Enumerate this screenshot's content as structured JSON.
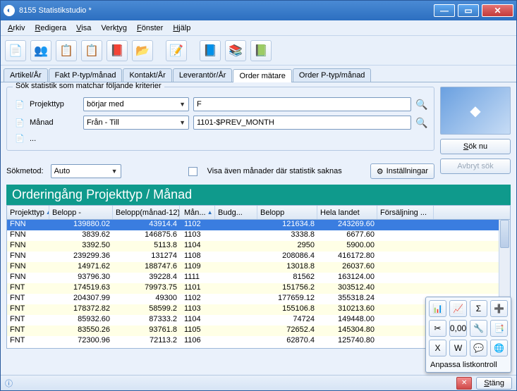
{
  "window": {
    "title": "8155 Statistikstudio *"
  },
  "menu": {
    "items": [
      "Arkiv",
      "Redigera",
      "Visa",
      "Verktyg",
      "Fönster",
      "Hjälp"
    ]
  },
  "toolbar": {
    "icons": [
      "📄",
      "👥",
      "📋",
      "📋",
      "📕",
      "📂",
      "",
      "📝",
      "",
      "📘",
      "📚",
      "📗"
    ]
  },
  "tabs": {
    "items": [
      "Artikel/År",
      "Fakt P-typ/månad",
      "Kontakt/År",
      "Leverantör/År",
      "Order mätare",
      "Order P-typ/månad"
    ],
    "active": 4
  },
  "search": {
    "groupTitle": "Sök statistik som matchar följande kriterier",
    "rows": [
      {
        "icon": "📄",
        "label": "Projekttyp",
        "op": "börjar med",
        "value": "F"
      },
      {
        "icon": "📄",
        "label": "Månad",
        "op": "Från - Till",
        "value": "1101-$PREV_MONTH"
      },
      {
        "icon": "📄",
        "label": "...",
        "op": "",
        "value": ""
      }
    ],
    "sokmetodLabel": "Sökmetod:",
    "sokmetod": "Auto",
    "checkboxLabel": "Visa även månader där statistik saknas",
    "settingsLabel": "Inställningar",
    "sokNu": "Sök nu",
    "avbryt": "Avbryt sök"
  },
  "grid": {
    "title": "Orderingång Projekttyp / Månad",
    "columns": [
      "Projekttyp",
      "Belopp -",
      "Belopp(månad-12)",
      "Mån...",
      "Budg...",
      "Belopp",
      "Hela landet",
      "Försäljning ..."
    ],
    "rows": [
      [
        "FNN",
        "139880.02",
        "43914.4",
        "1102",
        "",
        "121634.8",
        "243269.60",
        ""
      ],
      [
        "FNN",
        "3839.62",
        "146875.6",
        "1103",
        "",
        "3338.8",
        "6677.60",
        ""
      ],
      [
        "FNN",
        "3392.50",
        "5113.8",
        "1104",
        "",
        "2950",
        "5900.00",
        ""
      ],
      [
        "FNN",
        "239299.36",
        "131274",
        "1108",
        "",
        "208086.4",
        "416172.80",
        ""
      ],
      [
        "FNN",
        "14971.62",
        "188747.6",
        "1109",
        "",
        "13018.8",
        "26037.60",
        ""
      ],
      [
        "FNN",
        "93796.30",
        "39228.4",
        "1111",
        "",
        "81562",
        "163124.00",
        ""
      ],
      [
        "FNT",
        "174519.63",
        "79973.75",
        "1101",
        "",
        "151756.2",
        "303512.40",
        ""
      ],
      [
        "FNT",
        "204307.99",
        "49300",
        "1102",
        "",
        "177659.12",
        "355318.24",
        ""
      ],
      [
        "FNT",
        "178372.82",
        "58599.2",
        "1103",
        "",
        "155106.8",
        "310213.60",
        ""
      ],
      [
        "FNT",
        "85932.60",
        "87333.2",
        "1104",
        "",
        "74724",
        "149448.00",
        ""
      ],
      [
        "FNT",
        "83550.26",
        "93761.8",
        "1105",
        "",
        "72652.4",
        "145304.80",
        ""
      ],
      [
        "FNT",
        "72300.96",
        "72113.2",
        "1106",
        "",
        "62870.4",
        "125740.80",
        ""
      ]
    ],
    "selected": 0
  },
  "popup": {
    "label": "Anpassa listkontroll",
    "icons": [
      [
        "📊",
        "📈",
        "Σ",
        "➕"
      ],
      [
        "✂",
        "0,00",
        "🔧",
        "📑"
      ],
      [
        "X",
        "W",
        "💬",
        "🌐"
      ]
    ]
  },
  "statusbar": {
    "closeLabel": "Stäng"
  },
  "colors": {
    "titleBg": "#0f9a8c",
    "selRow": "#3a7de0",
    "altRow": "#ffffe6"
  }
}
